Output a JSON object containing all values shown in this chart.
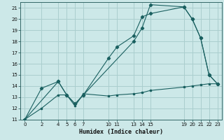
{
  "xlabel": "Humidex (Indice chaleur)",
  "bg_color": "#cce8e8",
  "grid_color": "#aacece",
  "line_color": "#1a6060",
  "xlim": [
    -0.5,
    23.5
  ],
  "ylim": [
    11,
    21.5
  ],
  "yticks": [
    11,
    12,
    13,
    14,
    15,
    16,
    17,
    18,
    19,
    20,
    21
  ],
  "xticks": [
    0,
    2,
    4,
    5,
    6,
    7,
    10,
    11,
    13,
    14,
    15,
    19,
    20,
    21,
    22,
    23
  ],
  "line1_x": [
    0,
    2,
    4,
    5,
    6,
    7,
    13,
    14,
    15,
    19,
    20,
    21,
    22,
    23
  ],
  "line1_y": [
    11.0,
    13.8,
    14.4,
    13.2,
    12.4,
    13.2,
    18.0,
    19.2,
    21.3,
    21.1,
    20.0,
    18.3,
    15.0,
    14.2
  ],
  "line2_x": [
    0,
    4,
    5,
    6,
    7,
    10,
    11,
    13,
    14,
    15,
    19,
    20,
    21,
    22,
    23
  ],
  "line2_y": [
    11.0,
    14.4,
    13.2,
    12.4,
    13.2,
    16.5,
    17.5,
    18.5,
    20.2,
    20.5,
    21.1,
    20.0,
    18.3,
    15.0,
    14.2
  ],
  "line3_x": [
    0,
    2,
    4,
    5,
    6,
    7,
    10,
    11,
    13,
    14,
    15,
    19,
    20,
    21,
    22,
    23
  ],
  "line3_y": [
    11.0,
    12.0,
    13.2,
    13.2,
    12.2,
    13.3,
    13.1,
    13.2,
    13.3,
    13.4,
    13.6,
    13.9,
    14.0,
    14.1,
    14.2,
    14.2
  ]
}
